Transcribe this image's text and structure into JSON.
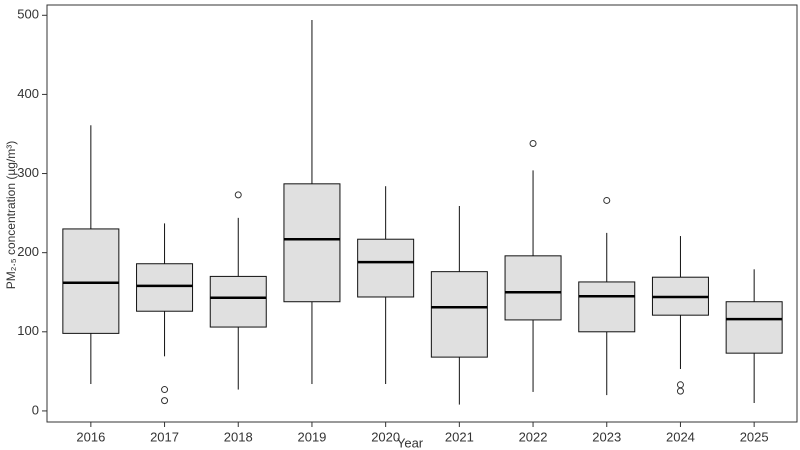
{
  "chart_data": {
    "type": "box",
    "x_label": "Year",
    "y_label": "PM₂.₅ concentration (µg/m³)",
    "categories": [
      "2016",
      "2017",
      "2018",
      "2019",
      "2020",
      "2021",
      "2022",
      "2023",
      "2024",
      "2025"
    ],
    "boxes": [
      {
        "min": 34,
        "q1": 98,
        "median": 162,
        "q3": 230,
        "max": 361,
        "outliers": []
      },
      {
        "min": 69,
        "q1": 126,
        "median": 158,
        "q3": 186,
        "max": 237,
        "outliers": [
          27,
          13
        ]
      },
      {
        "min": 27,
        "q1": 106,
        "median": 143,
        "q3": 170,
        "max": 244,
        "outliers": [
          273
        ]
      },
      {
        "min": 34,
        "q1": 138,
        "median": 217,
        "q3": 287,
        "max": 494,
        "outliers": []
      },
      {
        "min": 34,
        "q1": 144,
        "median": 188,
        "q3": 217,
        "max": 284,
        "outliers": []
      },
      {
        "min": 8,
        "q1": 68,
        "median": 131,
        "q3": 176,
        "max": 259,
        "outliers": []
      },
      {
        "min": 24,
        "q1": 115,
        "median": 150,
        "q3": 196,
        "max": 304,
        "outliers": [
          338
        ]
      },
      {
        "min": 20,
        "q1": 100,
        "median": 145,
        "q3": 163,
        "max": 225,
        "outliers": [
          266
        ]
      },
      {
        "min": 53,
        "q1": 121,
        "median": 144,
        "q3": 169,
        "max": 221,
        "outliers": [
          33,
          25
        ]
      },
      {
        "min": 10,
        "q1": 73,
        "median": 116,
        "q3": 138,
        "max": 179,
        "outliers": []
      }
    ],
    "color": "#e0e0e0",
    "ylim": [
      -14,
      513
    ],
    "yticks": [
      0,
      100,
      200,
      300,
      400,
      500
    ]
  }
}
